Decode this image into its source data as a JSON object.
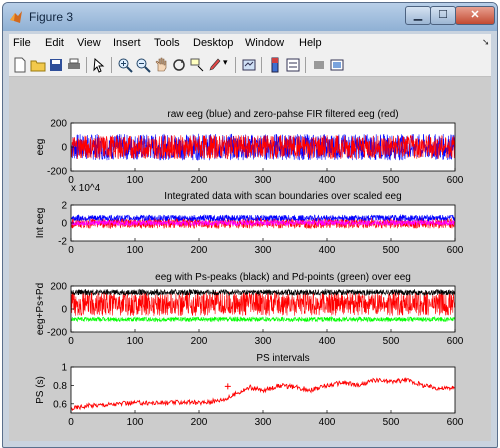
{
  "window": {
    "title": "Figure 3"
  },
  "menu": [
    "File",
    "Edit",
    "View",
    "Insert",
    "Tools",
    "Desktop",
    "Window",
    "Help"
  ],
  "toolbar_icons": [
    "new-figure-icon",
    "open-file-icon",
    "save-icon",
    "print-icon",
    "pointer-icon",
    "zoom-in-icon",
    "zoom-out-icon",
    "pan-icon",
    "rotate-icon",
    "data-cursor-icon",
    "brush-icon",
    "link-icon",
    "colorbar-icon",
    "legend-icon",
    "hide-plot-tools-icon",
    "show-plot-tools-icon"
  ],
  "colors": {
    "series_red": "#ff0000",
    "series_blue": "#0000ff",
    "series_magenta": "#ff00ff",
    "series_black": "#000000",
    "series_green": "#00ff00"
  },
  "chart_data": [
    {
      "type": "line",
      "title": "raw eeg (blue) and zero-pahse FIR filtered eeg (red)",
      "xlabel": "",
      "ylabel": "eeg",
      "xlim": [
        0,
        600
      ],
      "ylim": [
        -200,
        200
      ],
      "xticks": [
        "0",
        "100",
        "200",
        "300",
        "400",
        "500",
        "600"
      ],
      "yticks": [
        "-200",
        "0",
        "200"
      ],
      "exponent": "",
      "series": [
        {
          "color": "#0000ff",
          "band": [
            -110,
            110
          ]
        },
        {
          "color": "#ff0000",
          "band": [
            -100,
            100
          ]
        }
      ]
    },
    {
      "type": "line",
      "title": "Integrated data with scan boundaries over scaled eeg",
      "xlabel": "",
      "ylabel": "Int eeg",
      "xlim": [
        0,
        600
      ],
      "ylim": [
        -2,
        2
      ],
      "xticks": [
        "0",
        "100",
        "200",
        "300",
        "400",
        "500",
        "600"
      ],
      "yticks": [
        "-2",
        "0",
        "2"
      ],
      "exponent": "x 10^4",
      "series": [
        {
          "color": "#ff0000",
          "band": [
            -0.6,
            0.6
          ]
        },
        {
          "color": "#0000ff",
          "band": [
            0.2,
            0.9
          ]
        },
        {
          "color": "#ff00ff",
          "band": [
            -0.3,
            0.3
          ]
        }
      ]
    },
    {
      "type": "line",
      "title": "eeg with Ps-peaks (black) and Pd-points (green) over eeg",
      "xlabel": "",
      "ylabel": "eeg+Ps+Pd",
      "xlim": [
        0,
        600
      ],
      "ylim": [
        -200,
        200
      ],
      "xticks": [
        "0",
        "100",
        "200",
        "300",
        "400",
        "500",
        "600"
      ],
      "yticks": [
        "-200",
        "0",
        "200"
      ],
      "exponent": "",
      "series": [
        {
          "color": "#ff0000",
          "band": [
            -60,
            150
          ]
        },
        {
          "color": "#000000",
          "band": [
            120,
            170
          ]
        },
        {
          "color": "#00ff00",
          "band": [
            -110,
            -70
          ]
        }
      ]
    },
    {
      "type": "line",
      "title": "PS intervals",
      "xlabel": "",
      "ylabel": "PS (s)",
      "xlim": [
        0,
        600
      ],
      "ylim": [
        0.5,
        1
      ],
      "xticks": [
        "0",
        "100",
        "200",
        "300",
        "400",
        "500",
        "600"
      ],
      "yticks": [
        "0.6",
        "0.8",
        "1"
      ],
      "exponent": "",
      "series": [
        {
          "color": "#ff0000",
          "x": [
            0,
            25,
            50,
            75,
            100,
            125,
            150,
            175,
            200,
            225,
            245,
            260,
            280,
            300,
            325,
            350,
            375,
            400,
            425,
            450,
            475,
            500,
            525,
            550,
            575,
            600
          ],
          "y": [
            0.55,
            0.58,
            0.59,
            0.6,
            0.61,
            0.61,
            0.61,
            0.62,
            0.61,
            0.63,
            0.66,
            0.72,
            0.78,
            0.74,
            0.8,
            0.78,
            0.75,
            0.8,
            0.83,
            0.8,
            0.86,
            0.84,
            0.86,
            0.8,
            0.77,
            0.77
          ]
        }
      ],
      "outlier": {
        "x": 245,
        "y": 0.79
      }
    }
  ]
}
